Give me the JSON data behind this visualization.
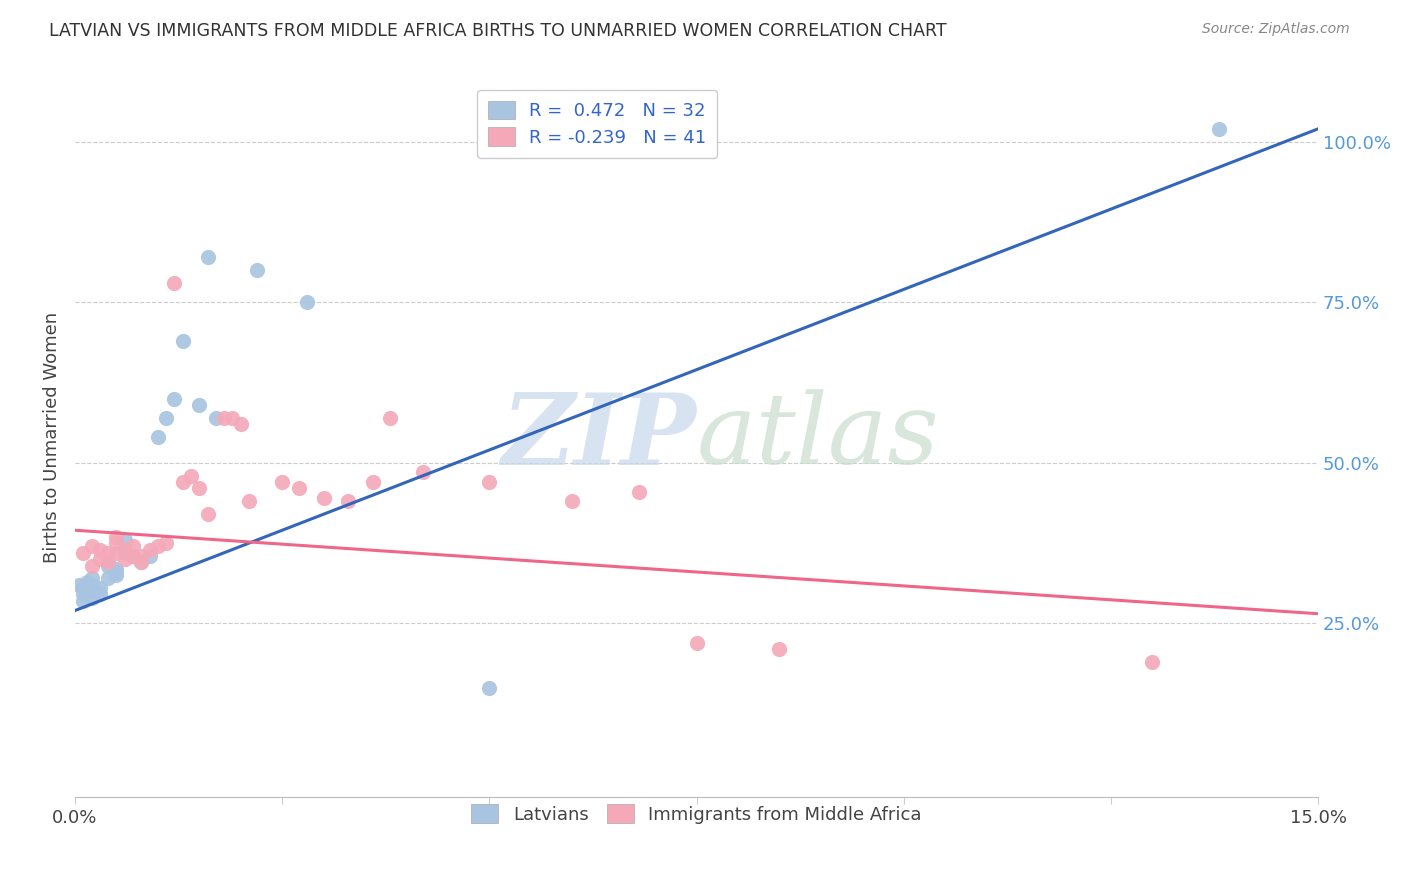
{
  "title": "LATVIAN VS IMMIGRANTS FROM MIDDLE AFRICA BIRTHS TO UNMARRIED WOMEN CORRELATION CHART",
  "source": "Source: ZipAtlas.com",
  "ylabel": "Births to Unmarried Women",
  "y_tick_labels": [
    "25.0%",
    "50.0%",
    "75.0%",
    "100.0%"
  ],
  "y_tick_values": [
    0.25,
    0.5,
    0.75,
    1.0
  ],
  "legend_r1": "R =  0.472   N = 32",
  "legend_r2": "R = -0.239   N = 41",
  "blue_color": "#A8C4E0",
  "pink_color": "#F4A8B8",
  "blue_line_color": "#3366BB",
  "pink_line_color": "#EE6688",
  "watermark_zip": "ZIP",
  "watermark_atlas": "atlas",
  "latvian_x": [
    0.0005,
    0.001,
    0.001,
    0.001,
    0.0015,
    0.002,
    0.002,
    0.002,
    0.002,
    0.003,
    0.003,
    0.004,
    0.004,
    0.005,
    0.005,
    0.005,
    0.006,
    0.006,
    0.007,
    0.008,
    0.009,
    0.01,
    0.011,
    0.012,
    0.013,
    0.015,
    0.016,
    0.017,
    0.022,
    0.028,
    0.05,
    0.138
  ],
  "latvian_y": [
    0.31,
    0.285,
    0.295,
    0.305,
    0.315,
    0.29,
    0.3,
    0.31,
    0.32,
    0.295,
    0.305,
    0.32,
    0.34,
    0.325,
    0.33,
    0.335,
    0.36,
    0.38,
    0.355,
    0.345,
    0.355,
    0.54,
    0.57,
    0.6,
    0.69,
    0.59,
    0.82,
    0.57,
    0.8,
    0.75,
    0.15,
    1.02
  ],
  "immigrant_x": [
    0.001,
    0.002,
    0.002,
    0.003,
    0.003,
    0.004,
    0.004,
    0.005,
    0.005,
    0.005,
    0.006,
    0.006,
    0.007,
    0.007,
    0.008,
    0.008,
    0.009,
    0.01,
    0.011,
    0.012,
    0.013,
    0.014,
    0.015,
    0.016,
    0.018,
    0.019,
    0.02,
    0.021,
    0.025,
    0.027,
    0.03,
    0.033,
    0.036,
    0.038,
    0.042,
    0.05,
    0.06,
    0.068,
    0.075,
    0.085,
    0.13
  ],
  "immigrant_y": [
    0.36,
    0.34,
    0.37,
    0.35,
    0.365,
    0.345,
    0.36,
    0.36,
    0.375,
    0.385,
    0.35,
    0.365,
    0.355,
    0.37,
    0.345,
    0.355,
    0.365,
    0.37,
    0.375,
    0.78,
    0.47,
    0.48,
    0.46,
    0.42,
    0.57,
    0.57,
    0.56,
    0.44,
    0.47,
    0.46,
    0.445,
    0.44,
    0.47,
    0.57,
    0.485,
    0.47,
    0.44,
    0.455,
    0.22,
    0.21,
    0.19
  ],
  "blue_trend_x": [
    0.0,
    0.15
  ],
  "blue_trend_y": [
    0.27,
    1.02
  ],
  "pink_trend_x": [
    0.0,
    0.15
  ],
  "pink_trend_y": [
    0.395,
    0.265
  ],
  "ylim": [
    -0.02,
    1.1
  ],
  "xlim": [
    0.0,
    0.15
  ]
}
